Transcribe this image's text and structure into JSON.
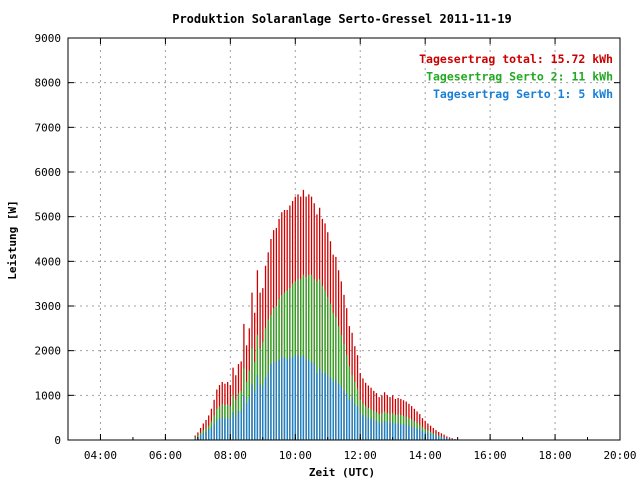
{
  "chart_data": {
    "type": "bar",
    "title": "Produktion Solaranlage Serto-Gressel 2011-11-19",
    "xlabel": "Zeit (UTC)",
    "ylabel": "Leistung [W]",
    "xlim": [
      "03:00",
      "20:00"
    ],
    "ylim": [
      0,
      9000
    ],
    "xticks": [
      "04:00",
      "06:00",
      "08:00",
      "10:00",
      "12:00",
      "14:00",
      "16:00",
      "18:00",
      "20:00"
    ],
    "yticks": [
      "0",
      "1000",
      "2000",
      "3000",
      "4000",
      "5000",
      "6000",
      "7000",
      "8000",
      "9000"
    ],
    "grid": true,
    "legend_position": "top-right",
    "legend": [
      {
        "label": "Tagesertrag total: 15.72 kWh",
        "color": "#cc0000"
      },
      {
        "label": "Tagesertrag Serto 2: 11 kWh",
        "color": "#22aa22"
      },
      {
        "label": "Tagesertrag Serto 1: 5 kWh",
        "color": "#1a7fd6"
      }
    ],
    "x": [
      "06:55",
      "07:00",
      "07:05",
      "07:10",
      "07:15",
      "07:20",
      "07:25",
      "07:30",
      "07:35",
      "07:40",
      "07:45",
      "07:50",
      "07:55",
      "08:00",
      "08:05",
      "08:10",
      "08:15",
      "08:20",
      "08:25",
      "08:30",
      "08:35",
      "08:40",
      "08:45",
      "08:50",
      "08:55",
      "09:00",
      "09:05",
      "09:10",
      "09:15",
      "09:20",
      "09:25",
      "09:30",
      "09:35",
      "09:40",
      "09:45",
      "09:50",
      "09:55",
      "10:00",
      "10:05",
      "10:10",
      "10:15",
      "10:20",
      "10:25",
      "10:30",
      "10:35",
      "10:40",
      "10:45",
      "10:50",
      "10:55",
      "11:00",
      "11:05",
      "11:10",
      "11:15",
      "11:20",
      "11:25",
      "11:30",
      "11:35",
      "11:40",
      "11:45",
      "11:50",
      "11:55",
      "12:00",
      "12:05",
      "12:10",
      "12:15",
      "12:20",
      "12:25",
      "12:30",
      "12:35",
      "12:40",
      "12:45",
      "12:50",
      "12:55",
      "13:00",
      "13:05",
      "13:10",
      "13:15",
      "13:20",
      "13:25",
      "13:30",
      "13:35",
      "13:40",
      "13:45",
      "13:50",
      "13:55",
      "14:00",
      "14:05",
      "14:10",
      "14:15",
      "14:20",
      "14:25",
      "14:30",
      "14:35",
      "14:40",
      "14:45",
      "14:50",
      "14:55",
      "15:00",
      "15:05",
      "15:10",
      "15:15",
      "15:20"
    ],
    "series": [
      {
        "name": "Serto 1",
        "color": "#1a7fd6",
        "values": [
          40,
          70,
          110,
          150,
          190,
          230,
          280,
          350,
          430,
          480,
          500,
          480,
          500,
          470,
          620,
          550,
          650,
          660,
          1000,
          820,
          950,
          1250,
          1100,
          1450,
          1250,
          1200,
          1400,
          1500,
          1700,
          1750,
          1750,
          1800,
          1850,
          1850,
          1800,
          1850,
          1850,
          1900,
          1900,
          1850,
          1900,
          1800,
          1800,
          1750,
          1700,
          1500,
          1600,
          1500,
          1500,
          1450,
          1400,
          1300,
          1350,
          1250,
          1200,
          1100,
          1050,
          900,
          950,
          800,
          750,
          600,
          560,
          520,
          500,
          480,
          450,
          430,
          380,
          400,
          430,
          400,
          380,
          400,
          360,
          370,
          360,
          350,
          340,
          320,
          300,
          280,
          260,
          240,
          200,
          180,
          160,
          140,
          120,
          100,
          80,
          70,
          60,
          40,
          30,
          20,
          10,
          5,
          0,
          0,
          0,
          0
        ]
      },
      {
        "name": "Serto 2",
        "color": "#22aa22",
        "values": [
          60,
          100,
          160,
          220,
          260,
          320,
          420,
          550,
          700,
          750,
          800,
          780,
          800,
          760,
          1000,
          900,
          1050,
          1100,
          1600,
          1300,
          1550,
          2050,
          1750,
          2350,
          2050,
          2200,
          2500,
          2700,
          2800,
          2950,
          3000,
          3150,
          3250,
          3300,
          3350,
          3400,
          3500,
          3550,
          3600,
          3600,
          3700,
          3650,
          3700,
          3700,
          3600,
          3550,
          3600,
          3450,
          3350,
          3200,
          3050,
          2850,
          2750,
          2550,
          2350,
          2150,
          1900,
          1650,
          1450,
          1300,
          1150,
          900,
          820,
          760,
          720,
          690,
          650,
          620,
          580,
          600,
          640,
          600,
          580,
          600,
          560,
          570,
          560,
          540,
          520,
          490,
          460,
          420,
          380,
          340,
          290,
          250,
          210,
          180,
          150,
          120,
          100,
          80,
          60,
          40,
          30,
          20,
          10,
          5,
          0,
          0,
          0,
          0
        ]
      },
      {
        "name": "total",
        "color": "#cc0000",
        "values": [
          100,
          170,
          270,
          370,
          450,
          550,
          700,
          900,
          1130,
          1230,
          1300,
          1260,
          1300,
          1230,
          1620,
          1450,
          1700,
          1760,
          2600,
          2120,
          2500,
          3300,
          2850,
          3800,
          3300,
          3400,
          3900,
          4200,
          4500,
          4700,
          4750,
          4950,
          5100,
          5150,
          5150,
          5250,
          5350,
          5450,
          5500,
          5450,
          5600,
          5450,
          5500,
          5450,
          5300,
          5050,
          5200,
          4950,
          4850,
          4650,
          4450,
          4150,
          4100,
          3800,
          3550,
          3250,
          2950,
          2550,
          2400,
          2100,
          1900,
          1500,
          1380,
          1280,
          1220,
          1170,
          1100,
          1050,
          960,
          1000,
          1070,
          1000,
          960,
          1000,
          920,
          940,
          920,
          890,
          860,
          810,
          760,
          700,
          640,
          580,
          490,
          430,
          370,
          320,
          270,
          220,
          180,
          150,
          120,
          80,
          60,
          40,
          20,
          10,
          0,
          0,
          0,
          0
        ]
      }
    ]
  }
}
